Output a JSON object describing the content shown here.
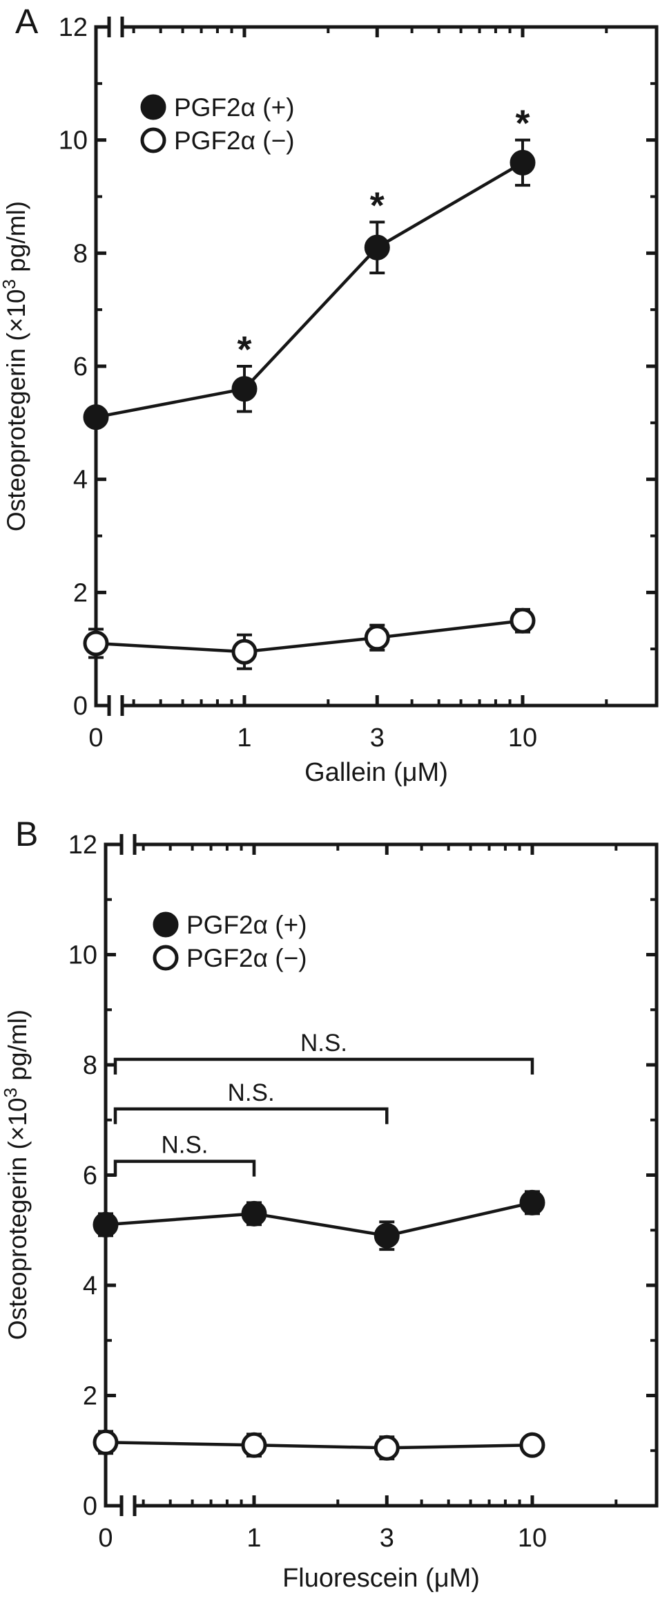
{
  "figure": {
    "background": "#ffffff",
    "ink": "#161616"
  },
  "chart_data": [
    {
      "panel_label": "A",
      "type": "line",
      "x_label": "Gallein (μM)",
      "y_label": "Osteoprotegerin (×10³ pg/ml)",
      "y_label_parts": {
        "prefix": "Osteoprotegerin (×10",
        "sup": "3",
        "suffix": " pg/ml)"
      },
      "x_scale": "log with axis break after 0",
      "x_values": [
        0,
        1,
        3,
        10
      ],
      "x_tick_labels": [
        "0",
        "1",
        "3",
        "10"
      ],
      "x_minor_ticks": [
        0.4,
        0.5,
        0.6,
        0.7,
        0.8,
        0.9,
        2,
        4,
        5,
        6,
        7,
        8,
        9,
        20
      ],
      "y_range": [
        0,
        12
      ],
      "y_major_ticks": [
        0,
        2,
        4,
        6,
        8,
        10,
        12
      ],
      "y_tick_labels": [
        "0",
        "2",
        "4",
        "6",
        "8",
        "10",
        "12"
      ],
      "y_minor_ticks": [
        1,
        3,
        5,
        7,
        9,
        11
      ],
      "legend_position": "top-left-inside",
      "series": [
        {
          "name": "PGF2α (+)",
          "marker": "filled-circle",
          "color": "#161616",
          "values": [
            5.1,
            5.6,
            8.1,
            9.6
          ],
          "errors": [
            0.15,
            0.4,
            0.45,
            0.4
          ],
          "significance": [
            "",
            "*",
            "*",
            "*"
          ]
        },
        {
          "name": "PGF2α (−)",
          "marker": "open-circle",
          "color": "#161616",
          "values": [
            1.1,
            0.95,
            1.2,
            1.5
          ],
          "errors": [
            0.25,
            0.3,
            0.22,
            0.2
          ],
          "significance": [
            "",
            "",
            "",
            ""
          ]
        }
      ],
      "comparisons": []
    },
    {
      "panel_label": "B",
      "type": "line",
      "x_label": "Fluorescein (μM)",
      "y_label": "Osteoprotegerin (×10³ pg/ml)",
      "y_label_parts": {
        "prefix": "Osteoprotegerin (×10",
        "sup": "3",
        "suffix": " pg/ml)"
      },
      "x_scale": "log with axis break after 0",
      "x_values": [
        0,
        1,
        3,
        10
      ],
      "x_tick_labels": [
        "0",
        "1",
        "3",
        "10"
      ],
      "x_minor_ticks": [
        0.4,
        0.5,
        0.6,
        0.7,
        0.8,
        0.9,
        2,
        4,
        5,
        6,
        7,
        8,
        9,
        20
      ],
      "y_range": [
        0,
        12
      ],
      "y_major_ticks": [
        0,
        2,
        4,
        6,
        8,
        10,
        12
      ],
      "y_tick_labels": [
        "0",
        "2",
        "4",
        "6",
        "8",
        "10",
        "12"
      ],
      "y_minor_ticks": [
        1,
        3,
        5,
        7,
        9,
        11
      ],
      "legend_position": "top-left-inside",
      "series": [
        {
          "name": "PGF2α (+)",
          "marker": "filled-circle",
          "color": "#161616",
          "values": [
            5.1,
            5.3,
            4.9,
            5.5
          ],
          "errors": [
            0.2,
            0.2,
            0.25,
            0.2
          ],
          "significance": [
            "",
            "",
            "",
            ""
          ]
        },
        {
          "name": "PGF2α (−)",
          "marker": "open-circle",
          "color": "#161616",
          "values": [
            1.15,
            1.1,
            1.05,
            1.1
          ],
          "errors": [
            0.2,
            0.2,
            0.2,
            0.15
          ],
          "significance": [
            "",
            "",
            "",
            ""
          ]
        }
      ],
      "comparisons": [
        {
          "label": "N.S.",
          "from": 0,
          "to": 1,
          "y": 6.25
        },
        {
          "label": "N.S.",
          "from": 0,
          "to": 3,
          "y": 7.2
        },
        {
          "label": "N.S.",
          "from": 0,
          "to": 10,
          "y": 8.1
        }
      ]
    }
  ]
}
